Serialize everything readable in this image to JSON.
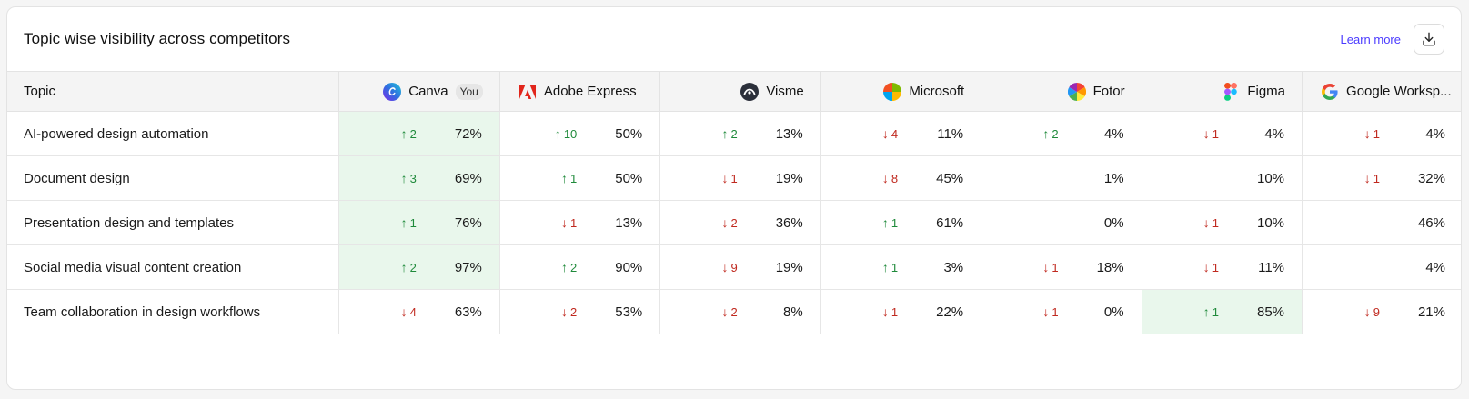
{
  "header": {
    "title": "Topic wise visibility across competitors",
    "learn_more": "Learn more"
  },
  "table": {
    "topic_header": "Topic",
    "competitors": [
      {
        "name": "Canva",
        "badge": "You",
        "icon": "canva-logo-icon"
      },
      {
        "name": "Adobe Express",
        "icon": "adobe-express-logo-icon"
      },
      {
        "name": "Visme",
        "icon": "visme-logo-icon"
      },
      {
        "name": "Microsoft",
        "icon": "microsoft-logo-icon"
      },
      {
        "name": "Fotor",
        "icon": "fotor-logo-icon"
      },
      {
        "name": "Figma",
        "icon": "figma-logo-icon"
      },
      {
        "name": "Google Worksp...",
        "icon": "google-logo-icon"
      }
    ],
    "rows": [
      {
        "topic": "AI-powered design automation",
        "cells": [
          {
            "dir": "up",
            "delta": "2",
            "pct": "72%",
            "hl": true
          },
          {
            "dir": "up",
            "delta": "10",
            "pct": "50%",
            "hl": false
          },
          {
            "dir": "up",
            "delta": "2",
            "pct": "13%",
            "hl": false
          },
          {
            "dir": "down",
            "delta": "4",
            "pct": "11%",
            "hl": false
          },
          {
            "dir": "up",
            "delta": "2",
            "pct": "4%",
            "hl": false
          },
          {
            "dir": "down",
            "delta": "1",
            "pct": "4%",
            "hl": false
          },
          {
            "dir": "down",
            "delta": "1",
            "pct": "4%",
            "hl": false
          }
        ]
      },
      {
        "topic": "Document design",
        "cells": [
          {
            "dir": "up",
            "delta": "3",
            "pct": "69%",
            "hl": true
          },
          {
            "dir": "up",
            "delta": "1",
            "pct": "50%",
            "hl": false
          },
          {
            "dir": "down",
            "delta": "1",
            "pct": "19%",
            "hl": false
          },
          {
            "dir": "down",
            "delta": "8",
            "pct": "45%",
            "hl": false
          },
          {
            "dir": "",
            "delta": "",
            "pct": "1%",
            "hl": false
          },
          {
            "dir": "",
            "delta": "",
            "pct": "10%",
            "hl": false
          },
          {
            "dir": "down",
            "delta": "1",
            "pct": "32%",
            "hl": false
          }
        ]
      },
      {
        "topic": "Presentation design and templates",
        "cells": [
          {
            "dir": "up",
            "delta": "1",
            "pct": "76%",
            "hl": true
          },
          {
            "dir": "down",
            "delta": "1",
            "pct": "13%",
            "hl": false
          },
          {
            "dir": "down",
            "delta": "2",
            "pct": "36%",
            "hl": false
          },
          {
            "dir": "up",
            "delta": "1",
            "pct": "61%",
            "hl": false
          },
          {
            "dir": "",
            "delta": "",
            "pct": "0%",
            "hl": false
          },
          {
            "dir": "down",
            "delta": "1",
            "pct": "10%",
            "hl": false
          },
          {
            "dir": "",
            "delta": "",
            "pct": "46%",
            "hl": false
          }
        ]
      },
      {
        "topic": "Social media visual content creation",
        "cells": [
          {
            "dir": "up",
            "delta": "2",
            "pct": "97%",
            "hl": true
          },
          {
            "dir": "up",
            "delta": "2",
            "pct": "90%",
            "hl": false
          },
          {
            "dir": "down",
            "delta": "9",
            "pct": "19%",
            "hl": false
          },
          {
            "dir": "up",
            "delta": "1",
            "pct": "3%",
            "hl": false
          },
          {
            "dir": "down",
            "delta": "1",
            "pct": "18%",
            "hl": false
          },
          {
            "dir": "down",
            "delta": "1",
            "pct": "11%",
            "hl": false
          },
          {
            "dir": "",
            "delta": "",
            "pct": "4%",
            "hl": false
          }
        ]
      },
      {
        "topic": "Team collaboration in design workflows",
        "cells": [
          {
            "dir": "down",
            "delta": "4",
            "pct": "63%",
            "hl": false
          },
          {
            "dir": "down",
            "delta": "2",
            "pct": "53%",
            "hl": false
          },
          {
            "dir": "down",
            "delta": "2",
            "pct": "8%",
            "hl": false
          },
          {
            "dir": "down",
            "delta": "1",
            "pct": "22%",
            "hl": false
          },
          {
            "dir": "down",
            "delta": "1",
            "pct": "0%",
            "hl": false
          },
          {
            "dir": "up",
            "delta": "1",
            "pct": "85%",
            "hl": true
          },
          {
            "dir": "down",
            "delta": "9",
            "pct": "21%",
            "hl": false
          }
        ]
      }
    ]
  },
  "colors": {
    "highlight": "#e9f7ec",
    "up": "#1f8a3b",
    "down": "#c0291f",
    "link": "#4a3aff"
  }
}
